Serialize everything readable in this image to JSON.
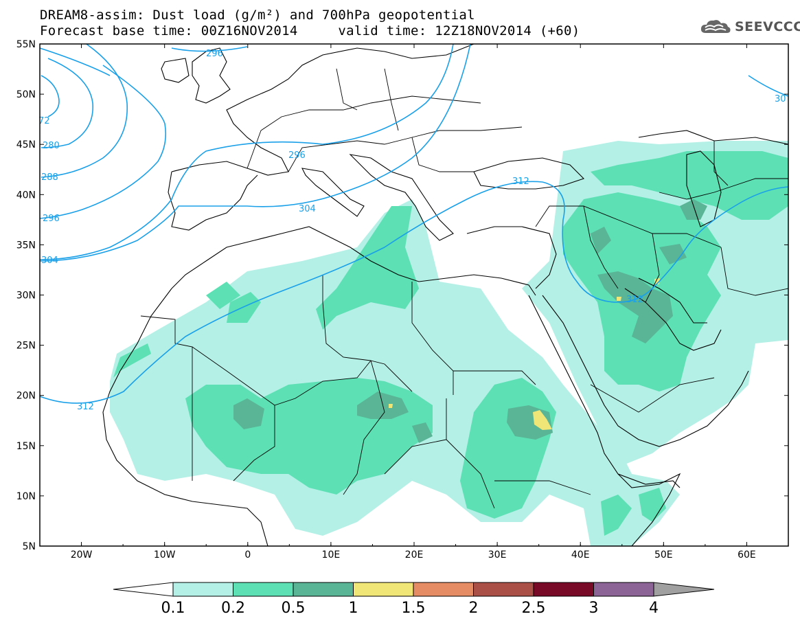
{
  "title": {
    "line1": "DREAM8-assim: Dust load (g/m²) and 700hPa geopotential",
    "line2": "Forecast base time: 00Z16NOV2014     valid time: 12Z18NOV2014 (+60)"
  },
  "logo": {
    "text": "SEEVCCC",
    "icon": "cloud-icon"
  },
  "map": {
    "lon_range": [
      -25,
      65
    ],
    "lat_range": [
      5,
      55
    ],
    "lon_ticks": [
      "20W",
      "10W",
      "0",
      "10E",
      "20E",
      "30E",
      "40E",
      "50E",
      "60E"
    ],
    "lat_ticks": [
      "55N",
      "50N",
      "45N",
      "40N",
      "35N",
      "30N",
      "25N",
      "20N",
      "15N",
      "10N",
      "5N"
    ],
    "contour_color": "#1aa0e8",
    "contour_labels": [
      "296",
      "72",
      "280",
      "288",
      "296",
      "304",
      "296",
      "304",
      "312",
      "312",
      "312",
      "30"
    ]
  },
  "colorbar": {
    "levels": [
      "0.1",
      "0.2",
      "0.5",
      "1",
      "1.5",
      "2",
      "2.5",
      "3",
      "4"
    ],
    "colors": [
      "#b4f0e6",
      "#5ce0b4",
      "#5ab496",
      "#f0e678",
      "#e68c64",
      "#aa5046",
      "#780a28",
      "#8c6496"
    ],
    "over_color": "#a0a0a0",
    "under_color": "#ffffff"
  }
}
